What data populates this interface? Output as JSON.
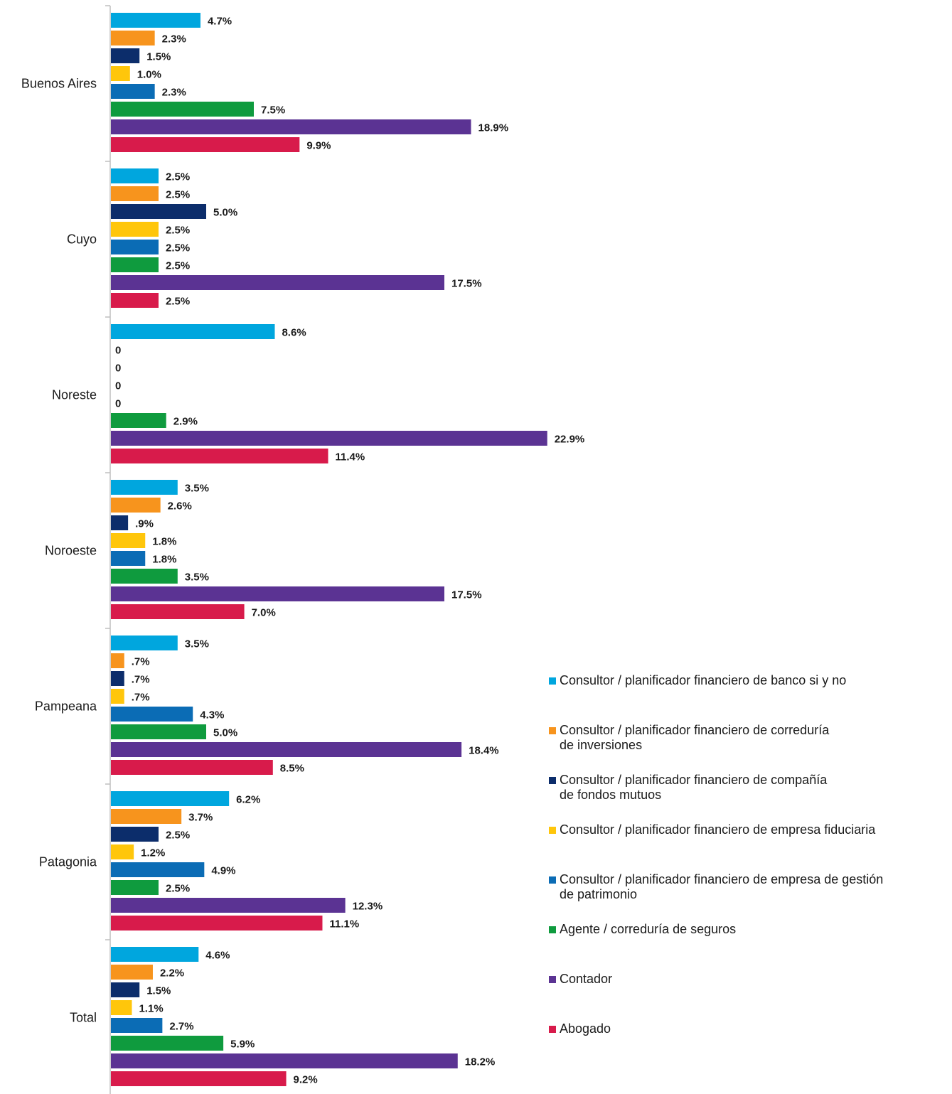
{
  "chart_data": {
    "type": "bar",
    "orientation": "horizontal",
    "title": "",
    "xlabel": "",
    "ylabel": "",
    "xlim": [
      0,
      25
    ],
    "grid": false,
    "legend_position": "right",
    "categories": [
      "Buenos Aires",
      "Cuyo",
      "Noreste",
      "Noroeste",
      "Pampeana",
      "Patagonia",
      "Total"
    ],
    "series": [
      {
        "name": "Consultor / planificador financiero de banco si y no",
        "color": "#00a6de",
        "values": [
          4.7,
          2.5,
          8.6,
          3.5,
          3.5,
          6.2,
          4.6
        ],
        "labels": [
          "4.7%",
          "2.5%",
          "8.6%",
          "3.5%",
          "3.5%",
          "6.2%",
          "4.6%"
        ]
      },
      {
        "name": "Consultor / planificador financiero de correduría\nde inversiones",
        "color": "#f7941d",
        "values": [
          2.3,
          2.5,
          0,
          2.6,
          0.7,
          3.7,
          2.2
        ],
        "labels": [
          "2.3%",
          "2.5%",
          "0",
          "2.6%",
          ".7%",
          "3.7%",
          "2.2%"
        ]
      },
      {
        "name": "Consultor / planificador financiero de compañía\nde fondos mutuos",
        "color": "#0c2d6b",
        "values": [
          1.5,
          5.0,
          0,
          0.9,
          0.7,
          2.5,
          1.5
        ],
        "labels": [
          "1.5%",
          "5.0%",
          "0",
          ".9%",
          ".7%",
          "2.5%",
          "1.5%"
        ]
      },
      {
        "name": "Consultor / planificador financiero de empresa fiduciaria",
        "color": "#ffc60b",
        "values": [
          1.0,
          2.5,
          0,
          1.8,
          0.7,
          1.2,
          1.1
        ],
        "labels": [
          "1.0%",
          "2.5%",
          "0",
          "1.8%",
          ".7%",
          "1.2%",
          "1.1%"
        ]
      },
      {
        "name": "Consultor / planificador financiero de empresa de gestión\nde patrimonio",
        "color": "#0b6cb5",
        "values": [
          2.3,
          2.5,
          0,
          1.8,
          4.3,
          4.9,
          2.7
        ],
        "labels": [
          "2.3%",
          "2.5%",
          "0",
          "1.8%",
          "4.3%",
          "4.9%",
          "2.7%"
        ]
      },
      {
        "name": "Agente / correduría de seguros",
        "color": "#0f9b3e",
        "values": [
          7.5,
          2.5,
          2.9,
          3.5,
          5.0,
          2.5,
          5.9
        ],
        "labels": [
          "7.5%",
          "2.5%",
          "2.9%",
          "3.5%",
          "5.0%",
          "2.5%",
          "5.9%"
        ]
      },
      {
        "name": "Contador",
        "color": "#5b3393",
        "values": [
          18.9,
          17.5,
          22.9,
          17.5,
          18.4,
          12.3,
          18.2
        ],
        "labels": [
          "18.9%",
          "17.5%",
          "22.9%",
          "17.5%",
          "18.4%",
          "12.3%",
          "18.2%"
        ]
      },
      {
        "name": "Abogado",
        "color": "#d81b4b",
        "values": [
          9.9,
          2.5,
          11.4,
          7.0,
          8.5,
          11.1,
          9.2
        ],
        "labels": [
          "9.9%",
          "2.5%",
          "11.4%",
          "7.0%",
          "8.5%",
          "11.1%",
          "9.2%"
        ]
      }
    ]
  }
}
